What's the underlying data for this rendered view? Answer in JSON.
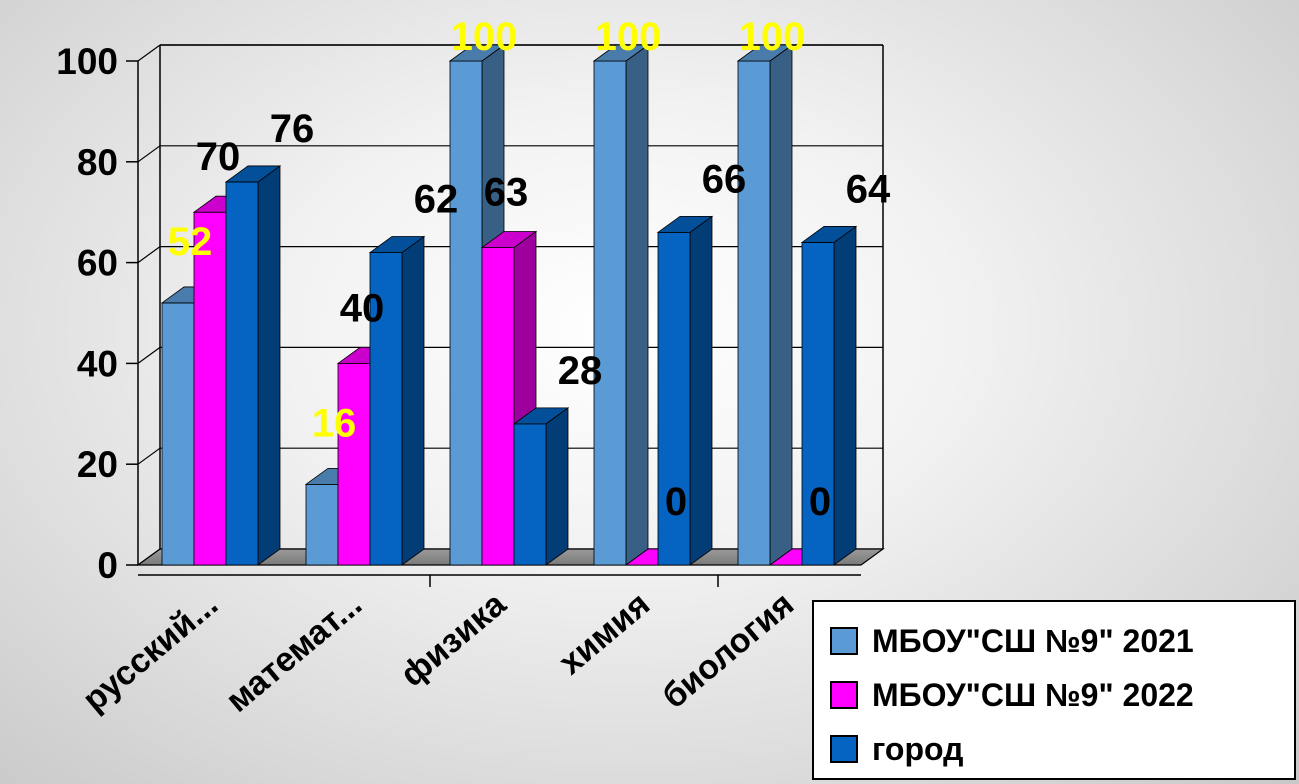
{
  "chart_data": {
    "type": "bar",
    "categories": [
      "русский...",
      "математ...",
      "физика",
      "химия",
      "биология"
    ],
    "series": [
      {
        "name": "МБОУ\"СШ №9\" 2021",
        "values": [
          52,
          16,
          100,
          100,
          100
        ],
        "color": "#5B9BD5",
        "label_color": "#FFFF00"
      },
      {
        "name": "МБОУ\"СШ №9\" 2022",
        "values": [
          70,
          40,
          63,
          0,
          0
        ],
        "color": "#FF00FF",
        "label_color": "#000000"
      },
      {
        "name": "город",
        "values": [
          76,
          62,
          28,
          66,
          64
        ],
        "color": "#0563C1",
        "label_color": "#000000"
      }
    ],
    "y_ticks": [
      "0",
      "20",
      "40",
      "60",
      "80",
      "100"
    ],
    "ylim": [
      0,
      100
    ],
    "grid": true,
    "legend_position": "bottom-right",
    "style": "3d-clustered-column"
  }
}
